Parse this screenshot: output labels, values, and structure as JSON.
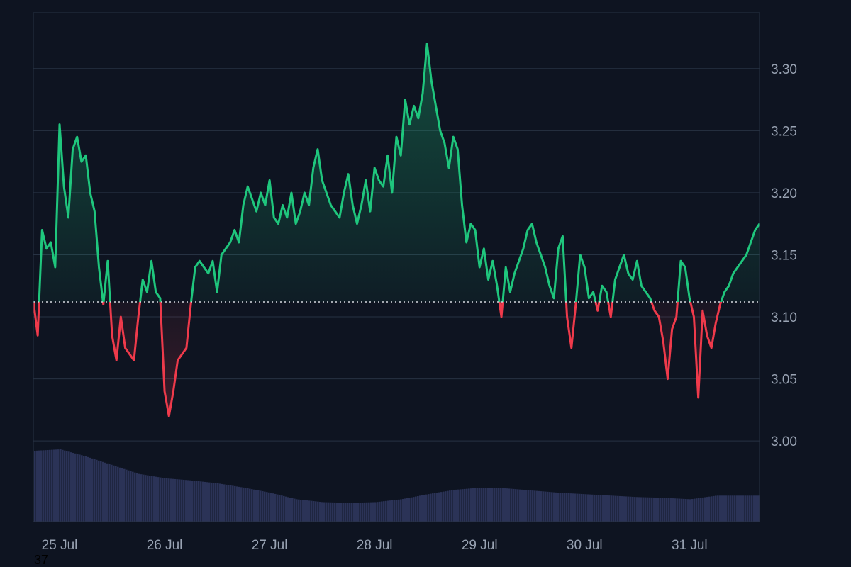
{
  "colors": {
    "background": "#0e1421",
    "grid": "#273243",
    "axis_text": "#99a3b3",
    "up_line": "#1fc67d",
    "down_line": "#ef3a4b",
    "baseline_dots": "#d5d9e0",
    "volume": "#2b3357"
  },
  "corner_label": "37",
  "chart_data": {
    "type": "area",
    "title": "",
    "xlabel": "",
    "ylabel": "",
    "ylim": [
      2.935,
      3.345
    ],
    "y_ticks": [
      3.0,
      3.05,
      3.1,
      3.15,
      3.2,
      3.25,
      3.3
    ],
    "y_tick_labels": [
      "3.00",
      "3.05",
      "3.10",
      "3.15",
      "3.20",
      "3.25",
      "3.30"
    ],
    "x_range": [
      "2024-07-24T18:00",
      "2024-07-31T16:00"
    ],
    "x_ticks": [
      "2024-07-25",
      "2024-07-26",
      "2024-07-27",
      "2024-07-28",
      "2024-07-29",
      "2024-07-30",
      "2024-07-31"
    ],
    "x_tick_labels": [
      "25 Jul",
      "26 Jul",
      "27 Jul",
      "28 Jul",
      "29 Jul",
      "30 Jul",
      "31 Jul"
    ],
    "baseline": 3.112,
    "grid": true,
    "legend": "none",
    "series": [
      {
        "x": [
          "2024-07-24T18:00",
          "2024-07-24T19:00",
          "2024-07-24T20:00",
          "2024-07-24T21:00",
          "2024-07-24T22:00",
          "2024-07-24T23:00",
          "2024-07-25T00:00",
          "2024-07-25T01:00",
          "2024-07-25T02:00",
          "2024-07-25T03:00",
          "2024-07-25T04:00",
          "2024-07-25T05:00",
          "2024-07-25T06:00",
          "2024-07-25T07:00",
          "2024-07-25T08:00",
          "2024-07-25T09:00",
          "2024-07-25T10:00",
          "2024-07-25T11:00",
          "2024-07-25T12:00",
          "2024-07-25T13:00",
          "2024-07-25T14:00",
          "2024-07-25T15:00",
          "2024-07-25T16:00",
          "2024-07-25T17:00",
          "2024-07-25T18:00",
          "2024-07-25T19:00",
          "2024-07-25T20:00",
          "2024-07-25T21:00",
          "2024-07-25T22:00",
          "2024-07-25T23:00",
          "2024-07-26T00:00",
          "2024-07-26T01:00",
          "2024-07-26T02:00",
          "2024-07-26T03:00",
          "2024-07-26T04:00",
          "2024-07-26T05:00",
          "2024-07-26T06:00",
          "2024-07-26T07:00",
          "2024-07-26T08:00",
          "2024-07-26T09:00",
          "2024-07-26T10:00",
          "2024-07-26T11:00",
          "2024-07-26T12:00",
          "2024-07-26T13:00",
          "2024-07-26T14:00",
          "2024-07-26T15:00",
          "2024-07-26T16:00",
          "2024-07-26T17:00",
          "2024-07-26T18:00",
          "2024-07-26T19:00",
          "2024-07-26T20:00",
          "2024-07-26T21:00",
          "2024-07-26T22:00",
          "2024-07-26T23:00",
          "2024-07-27T00:00",
          "2024-07-27T01:00",
          "2024-07-27T02:00",
          "2024-07-27T03:00",
          "2024-07-27T04:00",
          "2024-07-27T05:00",
          "2024-07-27T06:00",
          "2024-07-27T07:00",
          "2024-07-27T08:00",
          "2024-07-27T09:00",
          "2024-07-27T10:00",
          "2024-07-27T11:00",
          "2024-07-27T12:00",
          "2024-07-27T13:00",
          "2024-07-27T14:00",
          "2024-07-27T15:00",
          "2024-07-27T16:00",
          "2024-07-27T17:00",
          "2024-07-27T18:00",
          "2024-07-27T19:00",
          "2024-07-27T20:00",
          "2024-07-27T21:00",
          "2024-07-27T22:00",
          "2024-07-27T23:00",
          "2024-07-28T00:00",
          "2024-07-28T01:00",
          "2024-07-28T02:00",
          "2024-07-28T03:00",
          "2024-07-28T04:00",
          "2024-07-28T05:00",
          "2024-07-28T06:00",
          "2024-07-28T07:00",
          "2024-07-28T08:00",
          "2024-07-28T09:00",
          "2024-07-28T10:00",
          "2024-07-28T11:00",
          "2024-07-28T12:00",
          "2024-07-28T13:00",
          "2024-07-28T14:00",
          "2024-07-28T15:00",
          "2024-07-28T16:00",
          "2024-07-28T17:00",
          "2024-07-28T18:00",
          "2024-07-28T19:00",
          "2024-07-28T20:00",
          "2024-07-28T21:00",
          "2024-07-28T22:00",
          "2024-07-28T23:00",
          "2024-07-29T00:00",
          "2024-07-29T01:00",
          "2024-07-29T02:00",
          "2024-07-29T03:00",
          "2024-07-29T04:00",
          "2024-07-29T05:00",
          "2024-07-29T06:00",
          "2024-07-29T07:00",
          "2024-07-29T08:00",
          "2024-07-29T09:00",
          "2024-07-29T10:00",
          "2024-07-29T11:00",
          "2024-07-29T12:00",
          "2024-07-29T13:00",
          "2024-07-29T14:00",
          "2024-07-29T15:00",
          "2024-07-29T16:00",
          "2024-07-29T17:00",
          "2024-07-29T18:00",
          "2024-07-29T19:00",
          "2024-07-29T20:00",
          "2024-07-29T21:00",
          "2024-07-29T22:00",
          "2024-07-29T23:00",
          "2024-07-30T00:00",
          "2024-07-30T01:00",
          "2024-07-30T02:00",
          "2024-07-30T03:00",
          "2024-07-30T04:00",
          "2024-07-30T05:00",
          "2024-07-30T06:00",
          "2024-07-30T07:00",
          "2024-07-30T08:00",
          "2024-07-30T09:00",
          "2024-07-30T10:00",
          "2024-07-30T11:00",
          "2024-07-30T12:00",
          "2024-07-30T13:00",
          "2024-07-30T14:00",
          "2024-07-30T15:00",
          "2024-07-30T16:00",
          "2024-07-30T17:00",
          "2024-07-30T18:00",
          "2024-07-30T19:00",
          "2024-07-30T20:00",
          "2024-07-30T21:00",
          "2024-07-30T22:00",
          "2024-07-30T23:00",
          "2024-07-31T00:00",
          "2024-07-31T01:00",
          "2024-07-31T02:00",
          "2024-07-31T03:00",
          "2024-07-31T04:00",
          "2024-07-31T05:00",
          "2024-07-31T06:00",
          "2024-07-31T07:00",
          "2024-07-31T08:00",
          "2024-07-31T09:00",
          "2024-07-31T10:00",
          "2024-07-31T11:00",
          "2024-07-31T12:00",
          "2024-07-31T13:00",
          "2024-07-31T14:00",
          "2024-07-31T15:00",
          "2024-07-31T16:00"
        ],
        "values": [
          3.113,
          3.085,
          3.17,
          3.155,
          3.16,
          3.14,
          3.255,
          3.205,
          3.18,
          3.235,
          3.245,
          3.225,
          3.23,
          3.2,
          3.185,
          3.14,
          3.11,
          3.145,
          3.085,
          3.065,
          3.1,
          3.075,
          3.07,
          3.065,
          3.1,
          3.13,
          3.12,
          3.145,
          3.12,
          3.115,
          3.04,
          3.02,
          3.04,
          3.065,
          3.07,
          3.075,
          3.11,
          3.14,
          3.145,
          3.14,
          3.135,
          3.145,
          3.12,
          3.15,
          3.155,
          3.16,
          3.17,
          3.16,
          3.19,
          3.205,
          3.195,
          3.185,
          3.2,
          3.19,
          3.21,
          3.18,
          3.175,
          3.19,
          3.18,
          3.2,
          3.175,
          3.185,
          3.2,
          3.19,
          3.22,
          3.235,
          3.21,
          3.2,
          3.19,
          3.185,
          3.18,
          3.2,
          3.215,
          3.19,
          3.175,
          3.19,
          3.21,
          3.185,
          3.22,
          3.21,
          3.205,
          3.23,
          3.2,
          3.245,
          3.23,
          3.275,
          3.255,
          3.27,
          3.26,
          3.28,
          3.32,
          3.29,
          3.27,
          3.25,
          3.24,
          3.22,
          3.245,
          3.235,
          3.19,
          3.16,
          3.175,
          3.17,
          3.14,
          3.155,
          3.13,
          3.145,
          3.125,
          3.1,
          3.14,
          3.12,
          3.135,
          3.145,
          3.155,
          3.17,
          3.175,
          3.16,
          3.15,
          3.14,
          3.125,
          3.115,
          3.155,
          3.165,
          3.1,
          3.075,
          3.11,
          3.15,
          3.14,
          3.115,
          3.12,
          3.105,
          3.125,
          3.12,
          3.1,
          3.13,
          3.14,
          3.15,
          3.135,
          3.13,
          3.145,
          3.125,
          3.12,
          3.115,
          3.105,
          3.1,
          3.08,
          3.05,
          3.09,
          3.1,
          3.145,
          3.14,
          3.115,
          3.1,
          3.035,
          3.105,
          3.085,
          3.075,
          3.095,
          3.11,
          3.12,
          3.125,
          3.135,
          3.14,
          3.145,
          3.15,
          3.16,
          3.17,
          3.175
        ]
      }
    ],
    "volume": {
      "x": [
        "2024-07-24T18:00",
        "2024-07-25T00:00",
        "2024-07-25T06:00",
        "2024-07-25T12:00",
        "2024-07-25T18:00",
        "2024-07-26T00:00",
        "2024-07-26T06:00",
        "2024-07-26T12:00",
        "2024-07-26T18:00",
        "2024-07-27T00:00",
        "2024-07-27T06:00",
        "2024-07-27T12:00",
        "2024-07-27T18:00",
        "2024-07-28T00:00",
        "2024-07-28T06:00",
        "2024-07-28T12:00",
        "2024-07-28T18:00",
        "2024-07-29T00:00",
        "2024-07-29T06:00",
        "2024-07-29T12:00",
        "2024-07-29T18:00",
        "2024-07-30T00:00",
        "2024-07-30T06:00",
        "2024-07-30T12:00",
        "2024-07-30T18:00",
        "2024-07-31T00:00",
        "2024-07-31T06:00",
        "2024-07-31T12:00",
        "2024-07-31T16:00"
      ],
      "values": [
        0.98,
        1.0,
        0.9,
        0.78,
        0.66,
        0.6,
        0.57,
        0.53,
        0.47,
        0.4,
        0.31,
        0.27,
        0.26,
        0.27,
        0.31,
        0.38,
        0.44,
        0.47,
        0.46,
        0.43,
        0.4,
        0.38,
        0.36,
        0.34,
        0.33,
        0.31,
        0.36,
        0.36,
        0.36
      ]
    }
  }
}
